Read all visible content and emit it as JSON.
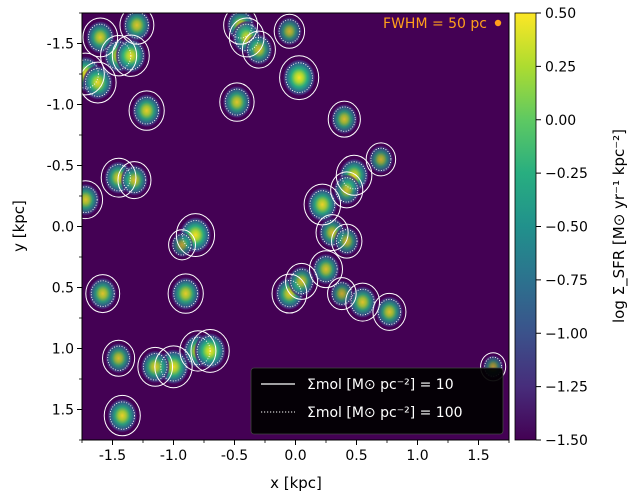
{
  "chart_data": {
    "type": "heatmap",
    "xlabel": "x [kpc]",
    "ylabel": "y [kpc]",
    "xlim": [
      -1.75,
      1.75
    ],
    "ylim": [
      1.75,
      -1.75
    ],
    "x_inverted": false,
    "y_inverted": true,
    "x_ticks": [
      -1.5,
      -1.0,
      -0.5,
      0.0,
      0.5,
      1.0,
      1.5
    ],
    "x_tick_labels": [
      "-1.5",
      "-1.0",
      "-0.5",
      "0.0",
      "0.5",
      "1.0",
      "1.5"
    ],
    "y_ticks": [
      -1.5,
      -1.0,
      -0.5,
      0.0,
      0.5,
      1.0,
      1.5
    ],
    "y_tick_labels": [
      "-1.5",
      "-1.0",
      "-0.5",
      "0.0",
      "0.5",
      "1.0",
      "1.5"
    ],
    "colorbar": {
      "label": "log Σ_SFR [M⊙ yr⁻¹ kpc⁻²]",
      "min": -1.5,
      "max": 0.5,
      "colormap": "viridis",
      "ticks": [
        0.5,
        0.25,
        0.0,
        -0.25,
        -0.5,
        -0.75,
        -1.0,
        -1.25,
        -1.5
      ],
      "tick_labels": [
        "0.50",
        "0.25",
        "0.00",
        "−0.25",
        "−0.50",
        "−0.75",
        "−1.00",
        "−1.25",
        "−1.50"
      ]
    },
    "annotation": {
      "text": "FWHM = 50 pc",
      "color": "#ff9f1c"
    },
    "legend": {
      "placement": "lower-right",
      "entries": [
        {
          "style": "solid",
          "label": "Σmol [M⊙ pc⁻²] = 10"
        },
        {
          "style": "dotted",
          "label": "Σmol [M⊙ pc⁻²] = 100"
        }
      ]
    },
    "background_color": "#440154",
    "clumps": [
      {
        "x": -1.6,
        "y": -1.55,
        "peak": -0.1
      },
      {
        "x": -1.45,
        "y": -1.4,
        "peak": 0.05
      },
      {
        "x": -1.35,
        "y": -1.4,
        "peak": 0.15
      },
      {
        "x": -1.3,
        "y": -1.65,
        "peak": -0.2
      },
      {
        "x": -1.72,
        "y": -1.25,
        "peak": 0.2
      },
      {
        "x": -1.62,
        "y": -1.18,
        "peak": 0.1
      },
      {
        "x": -1.22,
        "y": -0.95,
        "peak": -0.05
      },
      {
        "x": -0.48,
        "y": -1.02,
        "peak": -0.15
      },
      {
        "x": -0.45,
        "y": -1.65,
        "peak": -0.2
      },
      {
        "x": -0.4,
        "y": -1.55,
        "peak": -0.1
      },
      {
        "x": -0.3,
        "y": -1.45,
        "peak": -0.3
      },
      {
        "x": -0.05,
        "y": -1.6,
        "peak": -0.6
      },
      {
        "x": 0.03,
        "y": -1.22,
        "peak": 0.4
      },
      {
        "x": 0.4,
        "y": -0.88,
        "peak": -0.4
      },
      {
        "x": 0.7,
        "y": -0.55,
        "peak": -0.7
      },
      {
        "x": 0.48,
        "y": -0.42,
        "peak": 0.0
      },
      {
        "x": 0.42,
        "y": -0.3,
        "peak": -0.4
      },
      {
        "x": 0.22,
        "y": -0.18,
        "peak": 0.1
      },
      {
        "x": 0.3,
        "y": 0.05,
        "peak": -0.4
      },
      {
        "x": 0.42,
        "y": 0.12,
        "peak": -0.6
      },
      {
        "x": -1.45,
        "y": -0.4,
        "peak": -0.1
      },
      {
        "x": -1.32,
        "y": -0.38,
        "peak": -0.3
      },
      {
        "x": -1.72,
        "y": -0.22,
        "peak": -0.2
      },
      {
        "x": -0.82,
        "y": 0.07,
        "peak": 0.3
      },
      {
        "x": -0.9,
        "y": 0.55,
        "peak": -0.05
      },
      {
        "x": -1.58,
        "y": 0.55,
        "peak": -0.2
      },
      {
        "x": -0.05,
        "y": 0.55,
        "peak": -0.1
      },
      {
        "x": 0.05,
        "y": 0.45,
        "peak": -0.4
      },
      {
        "x": 0.25,
        "y": 0.35,
        "peak": -0.3
      },
      {
        "x": 0.55,
        "y": 0.62,
        "peak": -0.2
      },
      {
        "x": 0.77,
        "y": 0.7,
        "peak": -0.3
      },
      {
        "x": -0.8,
        "y": 1.02,
        "peak": 0.05
      },
      {
        "x": -0.7,
        "y": 1.02,
        "peak": 0.3
      },
      {
        "x": -1.0,
        "y": 1.15,
        "peak": 0.2
      },
      {
        "x": -1.15,
        "y": 1.15,
        "peak": -0.1
      },
      {
        "x": -1.45,
        "y": 1.08,
        "peak": -0.4
      },
      {
        "x": -1.42,
        "y": 1.55,
        "peak": 0.05
      },
      {
        "x": -0.93,
        "y": 0.15,
        "peak": -1.0
      },
      {
        "x": 0.38,
        "y": 0.55,
        "peak": -0.8
      },
      {
        "x": 1.62,
        "y": 1.15,
        "peak": -1.2
      }
    ]
  }
}
